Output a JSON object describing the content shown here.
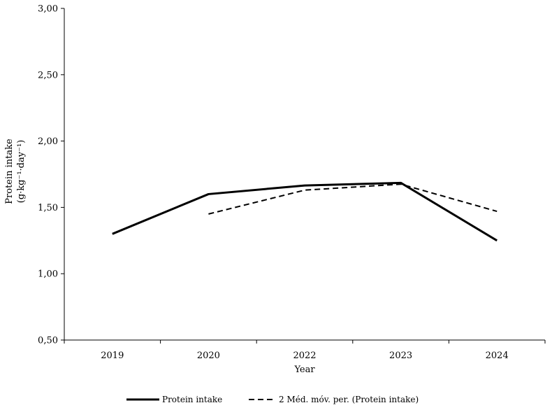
{
  "chart_data": {
    "type": "line",
    "categories": [
      "2019",
      "2020",
      "2022",
      "2023",
      "2024"
    ],
    "series": [
      {
        "name": "Protein intake",
        "values": [
          1.3,
          1.6,
          1.665,
          1.685,
          1.25
        ],
        "style": "solid"
      },
      {
        "name": "2 Méd. móv. per. (Protein intake)",
        "values": [
          null,
          1.45,
          1.63,
          1.675,
          1.47
        ],
        "style": "dashed"
      }
    ],
    "xlabel": "Year",
    "ylabel_line1": "Protein intake",
    "ylabel_line2": "(g·kg⁻¹·day⁻¹)",
    "ylim": [
      0.5,
      3.0
    ],
    "yticks": [
      "0,50",
      "1,00",
      "1,50",
      "2,00",
      "2,50",
      "3,00"
    ],
    "ytick_values": [
      0.5,
      1.0,
      1.5,
      2.0,
      2.5,
      3.0
    ],
    "grid": false,
    "legend_position": "bottom",
    "colors": {
      "line": "#000000",
      "axis": "#000000"
    }
  }
}
